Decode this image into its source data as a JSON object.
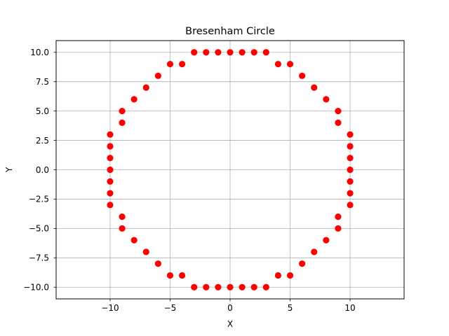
{
  "chart_data": {
    "type": "scatter",
    "title": "Bresenham Circle",
    "xlabel": "X",
    "ylabel": "Y",
    "xlim": [
      -14.5,
      14.5
    ],
    "ylim": [
      -11.0,
      11.0
    ],
    "grid": true,
    "marker_color": "#ff0000",
    "x_ticks": [
      -10,
      -5,
      0,
      5,
      10
    ],
    "x_tick_labels": [
      "−10",
      "−5",
      "0",
      "5",
      "10"
    ],
    "y_ticks": [
      10,
      7.5,
      5,
      2.5,
      0,
      -2.5,
      -5,
      -7.5,
      -10
    ],
    "y_tick_labels": [
      "10.0",
      "7.5",
      "5.0",
      "2.5",
      "0.0",
      "−2.5",
      "−5.0",
      "−7.5",
      "−10.0"
    ],
    "points": [
      [
        -3,
        10
      ],
      [
        -2,
        10
      ],
      [
        -1,
        10
      ],
      [
        0,
        10
      ],
      [
        1,
        10
      ],
      [
        2,
        10
      ],
      [
        3,
        10
      ],
      [
        -5,
        9
      ],
      [
        -4,
        9
      ],
      [
        4,
        9
      ],
      [
        5,
        9
      ],
      [
        -6,
        8
      ],
      [
        6,
        8
      ],
      [
        -7,
        7
      ],
      [
        7,
        7
      ],
      [
        -8,
        6
      ],
      [
        8,
        6
      ],
      [
        -9,
        5
      ],
      [
        9,
        5
      ],
      [
        -9,
        4
      ],
      [
        9,
        4
      ],
      [
        -10,
        3
      ],
      [
        10,
        3
      ],
      [
        -10,
        2
      ],
      [
        10,
        2
      ],
      [
        -10,
        1
      ],
      [
        10,
        1
      ],
      [
        -10,
        0
      ],
      [
        10,
        0
      ],
      [
        -10,
        -1
      ],
      [
        10,
        -1
      ],
      [
        -10,
        -2
      ],
      [
        10,
        -2
      ],
      [
        -10,
        -3
      ],
      [
        10,
        -3
      ],
      [
        -9,
        -4
      ],
      [
        9,
        -4
      ],
      [
        -9,
        -5
      ],
      [
        9,
        -5
      ],
      [
        -8,
        -6
      ],
      [
        8,
        -6
      ],
      [
        -7,
        -7
      ],
      [
        7,
        -7
      ],
      [
        -6,
        -8
      ],
      [
        6,
        -8
      ],
      [
        -5,
        -9
      ],
      [
        -4,
        -9
      ],
      [
        4,
        -9
      ],
      [
        5,
        -9
      ],
      [
        -3,
        -10
      ],
      [
        -2,
        -10
      ],
      [
        -1,
        -10
      ],
      [
        0,
        -10
      ],
      [
        1,
        -10
      ],
      [
        2,
        -10
      ],
      [
        3,
        -10
      ]
    ]
  }
}
